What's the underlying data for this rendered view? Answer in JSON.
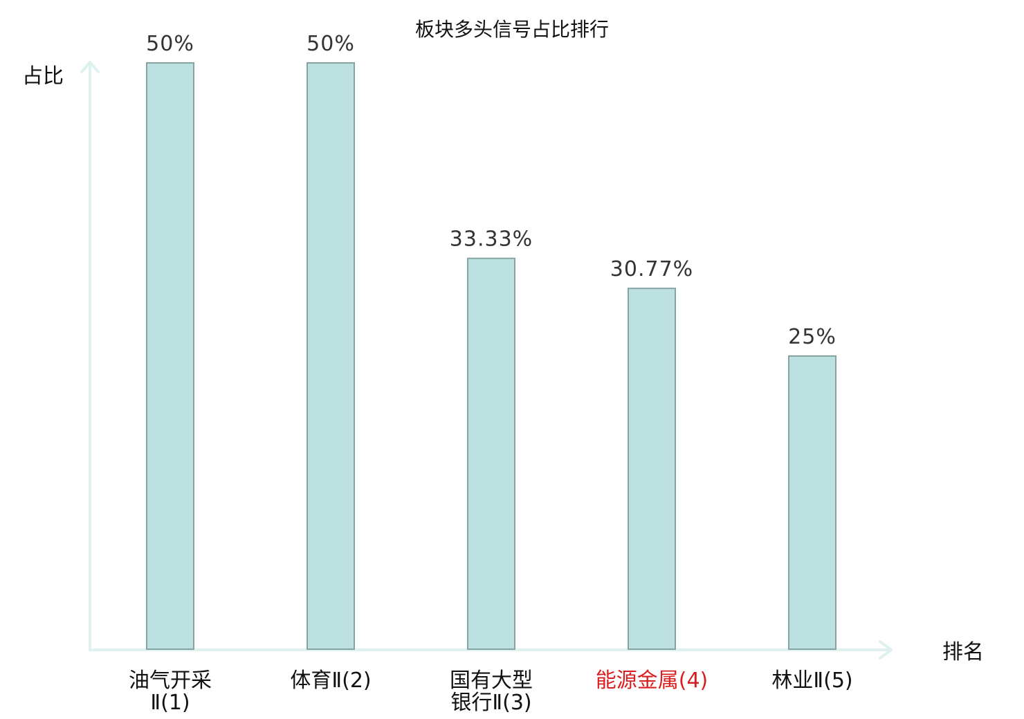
{
  "chart_data": {
    "type": "bar",
    "title": "板块多头信号占比排行",
    "xlabel": "排名",
    "ylabel": "占比",
    "categories": [
      [
        "油气开采",
        "Ⅱ(1)"
      ],
      [
        "体育Ⅱ(2)"
      ],
      [
        "国有大型",
        "银行Ⅱ(3)"
      ],
      [
        "能源金属(4)"
      ],
      [
        "林业Ⅱ(5)"
      ]
    ],
    "values": [
      50,
      50,
      33.33,
      30.77,
      25
    ],
    "value_labels": [
      "50%",
      "50%",
      "33.33%",
      "30.77%",
      "25%"
    ],
    "highlight_index": 3,
    "ylim": [
      0,
      50
    ],
    "grid": false,
    "legend": "none"
  },
  "colors": {
    "bar_fill": "#bde0e1",
    "bar_stroke": "#86a3a3",
    "axis": "#dff1ef",
    "highlight_label": "#d81e1e"
  }
}
